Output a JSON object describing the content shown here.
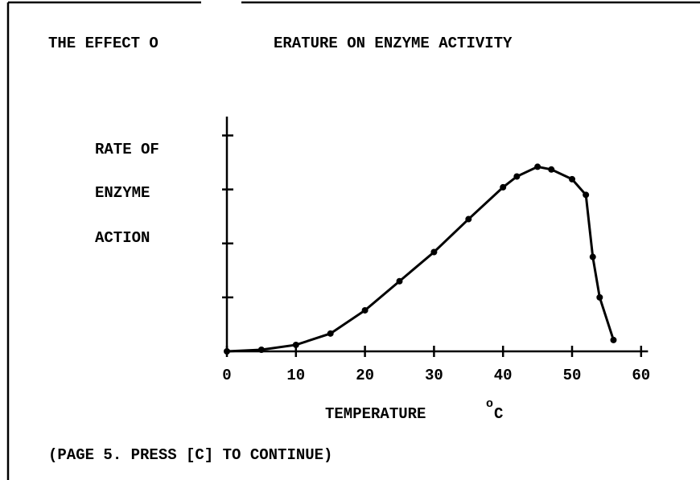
{
  "chart_data": {
    "type": "line",
    "title": [
      "THE EFFECT O",
      "ERATURE ON ENZYME ACTIVITY"
    ],
    "y_label": [
      "RATE OF",
      "ENZYME",
      "ACTION"
    ],
    "x_label": "TEMPERATURE",
    "x_unit": [
      "o",
      "C"
    ],
    "footer": "(PAGE 5.  PRESS [C] TO CONTINUE)",
    "color": "#000000",
    "x": [
      0,
      5,
      10,
      15,
      20,
      25,
      30,
      35,
      40,
      42,
      45,
      47,
      50,
      52,
      53,
      54,
      56
    ],
    "values": [
      0,
      0.03,
      0.12,
      0.33,
      0.76,
      1.3,
      1.84,
      2.45,
      3.04,
      3.24,
      3.42,
      3.37,
      3.19,
      2.9,
      1.75,
      1.0,
      0.21
    ],
    "xlim": [
      0,
      61
    ],
    "xticks": [
      0,
      10,
      20,
      30,
      40,
      50,
      60
    ],
    "ylim": [
      0,
      4.35
    ],
    "yticks": [
      1,
      2,
      3,
      4
    ]
  }
}
